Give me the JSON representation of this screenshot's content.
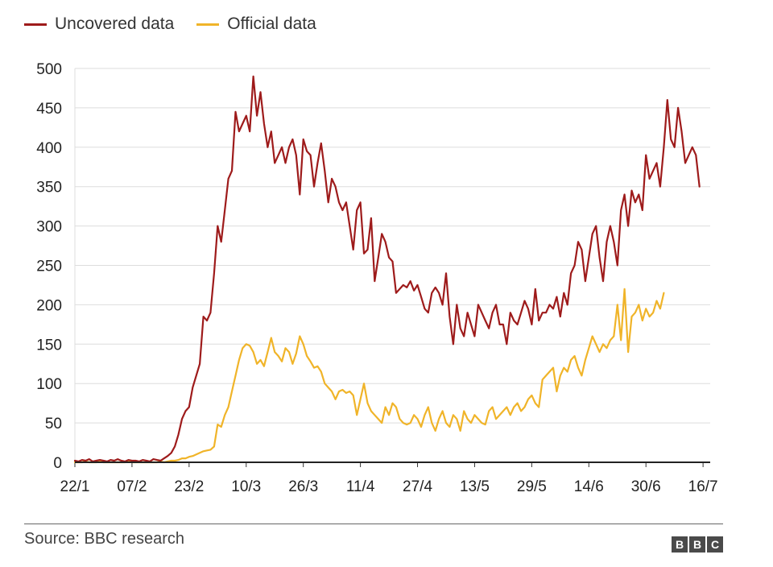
{
  "legend": {
    "items": [
      {
        "label": "Uncovered data",
        "color": "#9e1b1b"
      },
      {
        "label": "Official data",
        "color": "#f0b429"
      }
    ]
  },
  "footer": {
    "source": "Source: BBC research",
    "logo_letters": [
      "B",
      "B",
      "C"
    ]
  },
  "chart_data": {
    "type": "line",
    "title": "",
    "xlabel": "",
    "ylabel": "",
    "ylim": [
      0,
      500
    ],
    "yticks": [
      0,
      50,
      100,
      150,
      200,
      250,
      300,
      350,
      400,
      450,
      500
    ],
    "grid": true,
    "legend_position": "top-left",
    "xticks": [
      {
        "label": "22/1",
        "day": 0
      },
      {
        "label": "07/2",
        "day": 16
      },
      {
        "label": "23/2",
        "day": 32
      },
      {
        "label": "10/3",
        "day": 48
      },
      {
        "label": "26/3",
        "day": 64
      },
      {
        "label": "11/4",
        "day": 80
      },
      {
        "label": "27/4",
        "day": 96
      },
      {
        "label": "13/5",
        "day": 112
      },
      {
        "label": "29/5",
        "day": 128
      },
      {
        "label": "14/6",
        "day": 144
      },
      {
        "label": "30/6",
        "day": 160
      },
      {
        "label": "16/7",
        "day": 176
      }
    ],
    "x_day_range": [
      0,
      178
    ],
    "series": [
      {
        "name": "Uncovered data",
        "color": "#9e1b1b",
        "values": [
          2,
          1,
          3,
          2,
          4,
          1,
          2,
          3,
          2,
          1,
          3,
          2,
          4,
          2,
          1,
          3,
          2,
          2,
          1,
          3,
          2,
          1,
          4,
          3,
          2,
          5,
          8,
          12,
          20,
          35,
          55,
          65,
          70,
          95,
          110,
          125,
          185,
          180,
          190,
          240,
          300,
          280,
          320,
          360,
          370,
          445,
          420,
          430,
          440,
          420,
          490,
          440,
          470,
          430,
          400,
          420,
          380,
          390,
          400,
          380,
          400,
          410,
          390,
          340,
          410,
          395,
          390,
          350,
          380,
          405,
          370,
          330,
          360,
          350,
          330,
          320,
          330,
          300,
          270,
          320,
          330,
          265,
          270,
          310,
          230,
          260,
          290,
          280,
          260,
          255,
          215,
          220,
          225,
          222,
          230,
          218,
          225,
          210,
          195,
          190,
          215,
          222,
          215,
          200,
          240,
          185,
          150,
          200,
          170,
          160,
          190,
          175,
          160,
          200,
          190,
          180,
          170,
          190,
          200,
          175,
          175,
          150,
          190,
          180,
          175,
          190,
          205,
          195,
          175,
          220,
          180,
          190,
          190,
          200,
          195,
          210,
          185,
          215,
          200,
          240,
          250,
          280,
          270,
          230,
          260,
          290,
          300,
          260,
          230,
          280,
          300,
          280,
          250,
          320,
          340,
          300,
          345,
          330,
          340,
          320,
          390,
          360,
          370,
          380,
          350,
          400,
          460,
          410,
          400,
          450,
          420,
          380,
          390,
          400,
          390,
          350
        ]
      },
      {
        "name": "Official data",
        "color": "#f0b429",
        "values": [
          0,
          0,
          0,
          1,
          0,
          0,
          0,
          1,
          0,
          0,
          0,
          0,
          0,
          0,
          0,
          1,
          0,
          0,
          0,
          0,
          0,
          0,
          0,
          0,
          1,
          0,
          1,
          2,
          2,
          3,
          5,
          5,
          7,
          8,
          10,
          12,
          14,
          15,
          16,
          20,
          48,
          45,
          60,
          70,
          90,
          110,
          130,
          145,
          150,
          148,
          140,
          125,
          130,
          122,
          140,
          158,
          140,
          135,
          128,
          145,
          140,
          125,
          138,
          160,
          150,
          135,
          128,
          120,
          122,
          115,
          100,
          95,
          90,
          80,
          90,
          92,
          88,
          90,
          85,
          60,
          80,
          100,
          75,
          65,
          60,
          55,
          50,
          70,
          60,
          75,
          70,
          55,
          50,
          48,
          50,
          60,
          55,
          45,
          60,
          70,
          50,
          40,
          55,
          65,
          50,
          45,
          60,
          55,
          40,
          65,
          55,
          50,
          60,
          55,
          50,
          48,
          65,
          70,
          55,
          60,
          65,
          70,
          60,
          70,
          75,
          65,
          70,
          80,
          85,
          75,
          70,
          105,
          110,
          115,
          120,
          90,
          110,
          120,
          115,
          130,
          135,
          120,
          110,
          130,
          145,
          160,
          150,
          140,
          150,
          145,
          155,
          160,
          200,
          155,
          220,
          140,
          185,
          190,
          200,
          180,
          195,
          185,
          190,
          205,
          195,
          215
        ]
      }
    ]
  }
}
